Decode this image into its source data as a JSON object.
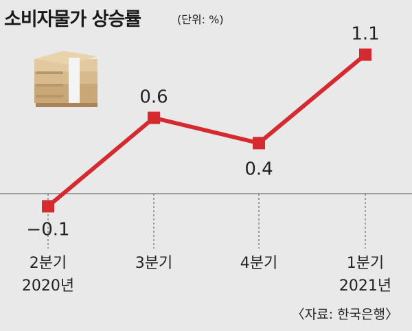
{
  "title": "소비자물가 상승률",
  "unit": "(단위: %)",
  "source": "〈자료: 한국은행〉",
  "colors": {
    "line": "#d42a30",
    "marker": "#d42a30",
    "background": "#e9e9e9",
    "axis": "#555555"
  },
  "icon": "money-stack-icon",
  "chart_data": {
    "type": "line",
    "categories": [
      "2분기\n2020년",
      "3분기",
      "4분기",
      "1분기\n2021년"
    ],
    "values": [
      -0.1,
      0.6,
      0.4,
      1.1
    ],
    "value_labels": [
      "−0.1",
      "0.6",
      "0.4",
      "1.1"
    ],
    "ylim": [
      -0.2,
      1.2
    ],
    "grid": false
  }
}
